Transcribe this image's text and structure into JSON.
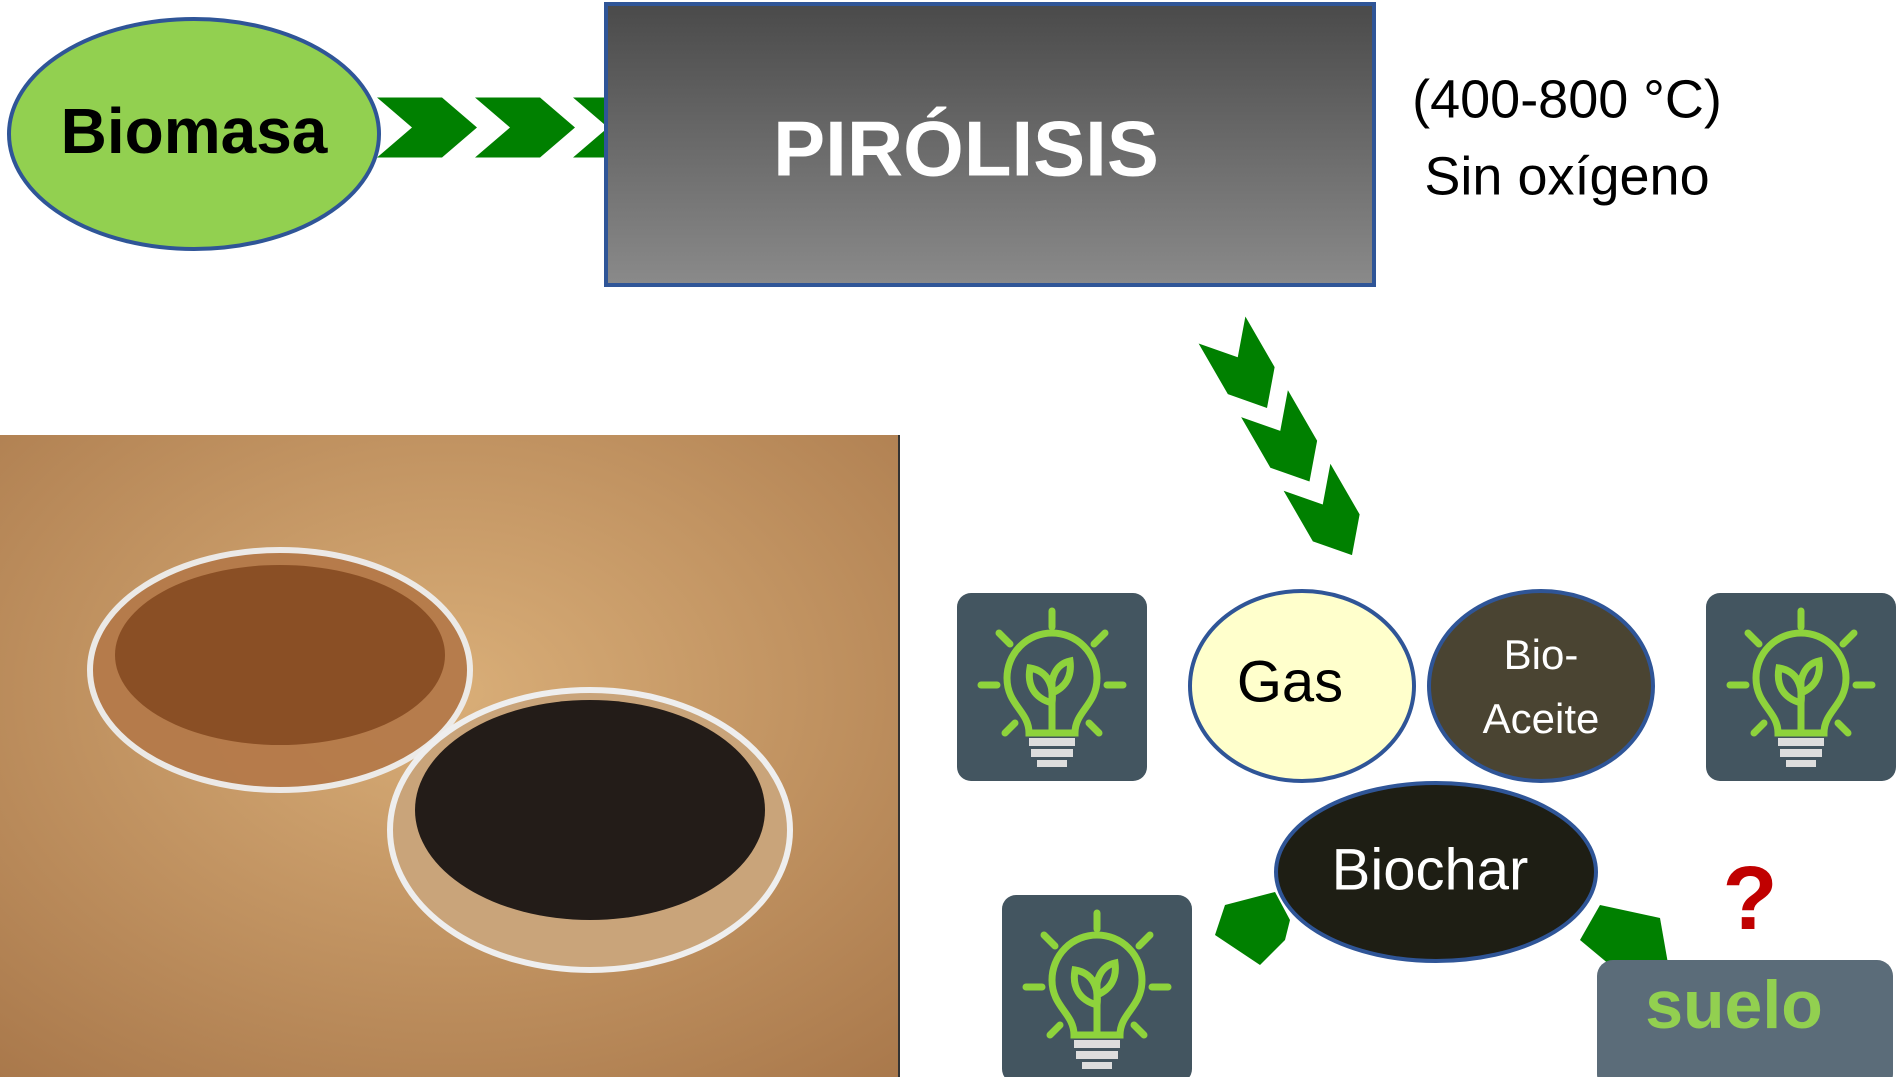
{
  "biomass": "Biomasa",
  "process": {
    "title": "PIRÓLISIS",
    "conditions": [
      "(400-800 °C)",
      "Sin oxígeno"
    ]
  },
  "products": {
    "gas": "Gas",
    "bio_oil": [
      "Bio-",
      "Aceite"
    ],
    "biochar": "Biochar"
  },
  "soil": {
    "question": "?",
    "label": "suelo"
  }
}
